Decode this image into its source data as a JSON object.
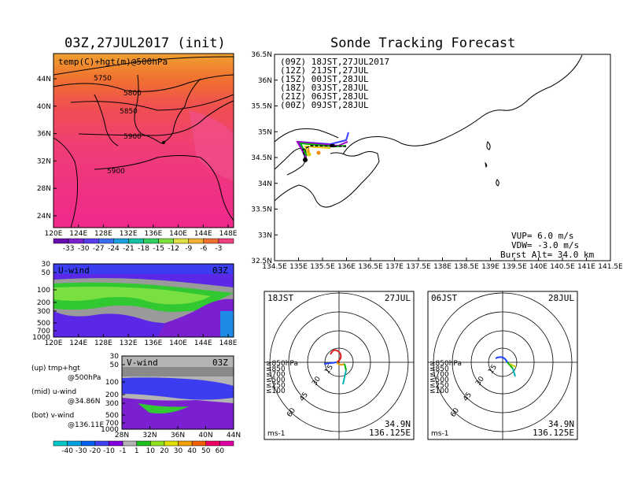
{
  "left_title": "03Z,27JUL2017 (init)",
  "right_title": "Sonde Tracking Forecast",
  "upper_map": {
    "label": "temp(C)+hgt(m)@500hPa",
    "contours": [
      "5750",
      "5800",
      "5850",
      "5900",
      "5900"
    ],
    "lat_ticks": [
      "44N",
      "40N",
      "36N",
      "32N",
      "28N",
      "24N"
    ],
    "lon_ticks": [
      "120E",
      "124E",
      "128E",
      "132E",
      "136E",
      "140E",
      "144E",
      "148E"
    ],
    "colorbar": [
      "-33",
      "-30",
      "-27",
      "-24",
      "-21",
      "-18",
      "-15",
      "-12",
      "-9",
      "-6",
      "-3"
    ],
    "colorbar_colors": [
      "#6a0db0",
      "#7a20d0",
      "#5a3cf0",
      "#3c6cf0",
      "#1aa0e0",
      "#10c0a0",
      "#30d060",
      "#80e040",
      "#e0e040",
      "#f0b030",
      "#f07030",
      "#f04080"
    ]
  },
  "u_wind": {
    "label": "U-wind",
    "time": "03Z",
    "p_ticks": [
      "30",
      "50",
      "100",
      "200",
      "300",
      "500",
      "700",
      "1000"
    ],
    "lon_ticks": [
      "120E",
      "124E",
      "128E",
      "132E",
      "136E",
      "140E",
      "144E",
      "148E"
    ]
  },
  "v_wind": {
    "label": "V-wind",
    "time": "03Z",
    "p_ticks": [
      "30",
      "50",
      "100",
      "200",
      "300",
      "500",
      "700",
      "1000"
    ],
    "lat_ticks": [
      "28N",
      "32N",
      "36N",
      "40N",
      "44N"
    ],
    "colorbar": [
      "-40",
      "-30",
      "-20",
      "-10",
      "-1",
      "1",
      "10",
      "20",
      "30",
      "40",
      "50",
      "60"
    ],
    "colorbar_colors": [
      "#00c8c8",
      "#00a0e0",
      "#0060f0",
      "#4040f0",
      "#8000e0",
      "#b4b4b4",
      "#20c020",
      "#90e020",
      "#e0e000",
      "#f0a000",
      "#f06000",
      "#f00060",
      "#e000a0"
    ]
  },
  "legend_text": {
    "up": "(up) tmp+hgt",
    "up2": "@500hPa",
    "mid": "(mid) u-wind",
    "mid2": "@34.86N",
    "bot": "(bot) v-wind",
    "bot2": "@136.11E"
  },
  "track_map": {
    "lat_ticks": [
      "36.5N",
      "36N",
      "35.5N",
      "35N",
      "34.5N",
      "34N",
      "33.5N",
      "33N",
      "32.5N"
    ],
    "lon_ticks": [
      "134.5E",
      "135E",
      "135.5E",
      "136E",
      "136.5E",
      "137E",
      "137.5E",
      "138E",
      "138.5E",
      "139E",
      "139.5E",
      "140E",
      "140.5E",
      "141E",
      "141.5E"
    ],
    "legend": [
      {
        "text": "(09Z)  18JST,27JUL2017",
        "color": "#000000"
      },
      {
        "text": "(12Z)  21JST,27JUL",
        "color": "#a000c8"
      },
      {
        "text": "(15Z)  00JST,28JUL",
        "color": "#3c3cff"
      },
      {
        "text": "(18Z)  03JST,28JUL",
        "color": "#00b400"
      },
      {
        "text": "(21Z)  06JST,28JUL",
        "color": "#e6c800"
      },
      {
        "text": "(00Z)  09JST,28JUL",
        "color": "#f08c00"
      }
    ],
    "params": {
      "vup": "VUP=  6.0 m/s",
      "vdw": "VDW= -3.0 m/s",
      "burst": "Burst Alt= 34.0 km"
    }
  },
  "hodo1": {
    "time": "18JST",
    "date": "27JUL",
    "levels": [
      {
        "text": "≥850hPa",
        "color": "#e02020"
      },
      {
        "text": "≤850",
        "color": "#e0a000"
      },
      {
        "text": "≤700",
        "color": "#c8c800"
      },
      {
        "text": "≤500",
        "color": "#00b400"
      },
      {
        "text": "≤250",
        "color": "#00b4b4"
      },
      {
        "text": "≤100",
        "color": "#2040ff"
      }
    ],
    "ring_labels": [
      "15",
      "30",
      "45",
      "60"
    ],
    "unit": "ms-1",
    "lat": "34.9N",
    "lon": "136.125E"
  },
  "hodo2": {
    "time": "06JST",
    "date": "28JUL",
    "levels": [
      {
        "text": "≥850hPa",
        "color": "#e02020"
      },
      {
        "text": "≤850",
        "color": "#e0a000"
      },
      {
        "text": "≤700",
        "color": "#c8c800"
      },
      {
        "text": "≤500",
        "color": "#00b400"
      },
      {
        "text": "≤250",
        "color": "#00b4b4"
      },
      {
        "text": "≤100",
        "color": "#2040ff"
      }
    ],
    "ring_labels": [
      "15",
      "30",
      "45",
      "60"
    ],
    "unit": "ms-1",
    "lat": "34.9N",
    "lon": "136.125E"
  }
}
